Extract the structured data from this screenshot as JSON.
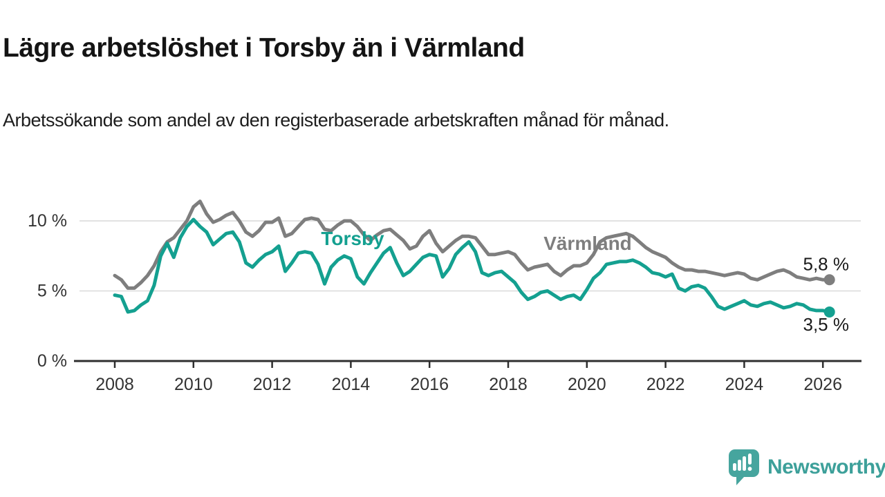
{
  "header": {
    "title": "Lägre arbetslöshet i Torsby än i Värmland",
    "subtitle": "Arbetssökande som andel av den registerbaserade arbetskraften månad för månad."
  },
  "colors": {
    "torsby": "#14a090",
    "varmland": "#7e7e7e",
    "grid": "#d9d9d9",
    "axis": "#2e2e2e",
    "tick_text": "#333333",
    "value_label_text": "#1a1a1a",
    "brand_teal": "#46a59e"
  },
  "chart_data": {
    "type": "line",
    "title": "",
    "xlabel": "",
    "ylabel": "",
    "x_start_year": 2008,
    "x_step_months": 2,
    "xlim": [
      2008,
      2026.17
    ],
    "ylim": [
      0,
      11.8
    ],
    "grid": "horizontal",
    "legend_position": "inline-labels",
    "yticks": [
      {
        "value": 0,
        "label": "0 %"
      },
      {
        "value": 5,
        "label": "5 %"
      },
      {
        "value": 10,
        "label": "10 %"
      }
    ],
    "xticks": [
      {
        "value": 2008,
        "label": "2008"
      },
      {
        "value": 2010,
        "label": "2010"
      },
      {
        "value": 2012,
        "label": "2012"
      },
      {
        "value": 2014,
        "label": "2014"
      },
      {
        "value": 2016,
        "label": "2016"
      },
      {
        "value": 2018,
        "label": "2018"
      },
      {
        "value": 2020,
        "label": "2020"
      },
      {
        "value": 2022,
        "label": "2022"
      },
      {
        "value": 2024,
        "label": "2024"
      },
      {
        "value": 2026,
        "label": "2026"
      }
    ],
    "series": [
      {
        "name": "Värmland",
        "key": "varmland",
        "color": "#7e7e7e",
        "end_label": "5,8 %",
        "end_value": 5.8,
        "values": [
          6.1,
          5.8,
          5.2,
          5.2,
          5.6,
          6.1,
          6.8,
          7.8,
          8.5,
          8.8,
          9.4,
          10.0,
          11.0,
          11.4,
          10.5,
          9.9,
          10.1,
          10.4,
          10.6,
          10.0,
          9.2,
          8.9,
          9.3,
          9.9,
          9.9,
          10.2,
          8.9,
          9.1,
          9.6,
          10.1,
          10.2,
          10.1,
          9.4,
          9.3,
          9.7,
          10.0,
          10.0,
          9.6,
          9.0,
          8.6,
          9.0,
          9.3,
          9.4,
          9.0,
          8.6,
          8.0,
          8.2,
          8.9,
          9.3,
          8.4,
          7.8,
          8.2,
          8.6,
          8.9,
          8.9,
          8.8,
          8.2,
          7.6,
          7.6,
          7.7,
          7.8,
          7.6,
          7.0,
          6.5,
          6.7,
          6.8,
          6.9,
          6.4,
          6.1,
          6.5,
          6.8,
          6.8,
          7.0,
          7.6,
          8.5,
          8.8,
          8.9,
          9.0,
          9.1,
          8.9,
          8.5,
          8.1,
          7.8,
          7.6,
          7.4,
          7.0,
          6.7,
          6.5,
          6.5,
          6.4,
          6.4,
          6.3,
          6.2,
          6.1,
          6.2,
          6.3,
          6.2,
          5.9,
          5.8,
          6.0,
          6.2,
          6.4,
          6.5,
          6.3,
          6.0,
          5.9,
          5.8,
          5.9,
          5.8,
          5.8
        ]
      },
      {
        "name": "Torsby",
        "key": "torsby",
        "color": "#14a090",
        "end_label": "3,5 %",
        "end_value": 3.5,
        "values": [
          4.7,
          4.6,
          3.5,
          3.6,
          4.0,
          4.3,
          5.4,
          7.5,
          8.4,
          7.4,
          8.8,
          9.6,
          10.1,
          9.6,
          9.2,
          8.3,
          8.7,
          9.1,
          9.2,
          8.5,
          7.0,
          6.7,
          7.2,
          7.6,
          7.8,
          8.2,
          6.4,
          7.0,
          7.7,
          7.8,
          7.7,
          6.9,
          5.5,
          6.7,
          7.2,
          7.5,
          7.3,
          6.0,
          5.5,
          6.3,
          7.0,
          7.7,
          8.1,
          7.0,
          6.1,
          6.4,
          6.9,
          7.4,
          7.6,
          7.5,
          6.0,
          6.6,
          7.6,
          8.1,
          8.5,
          7.8,
          6.3,
          6.1,
          6.3,
          6.4,
          6.0,
          5.6,
          4.9,
          4.4,
          4.6,
          4.9,
          5.0,
          4.7,
          4.4,
          4.6,
          4.7,
          4.4,
          5.1,
          5.9,
          6.3,
          6.9,
          7.0,
          7.1,
          7.1,
          7.2,
          7.0,
          6.7,
          6.3,
          6.2,
          6.0,
          6.2,
          5.2,
          5.0,
          5.3,
          5.4,
          5.2,
          4.6,
          3.9,
          3.7,
          3.9,
          4.1,
          4.3,
          4.0,
          3.9,
          4.1,
          4.2,
          4.0,
          3.8,
          3.9,
          4.1,
          4.0,
          3.7,
          3.6,
          3.6,
          3.5
        ]
      }
    ]
  },
  "footer": {
    "brand": "Newsworthy",
    "logo_icon": "newsworthy-bubble-chart-icon"
  }
}
